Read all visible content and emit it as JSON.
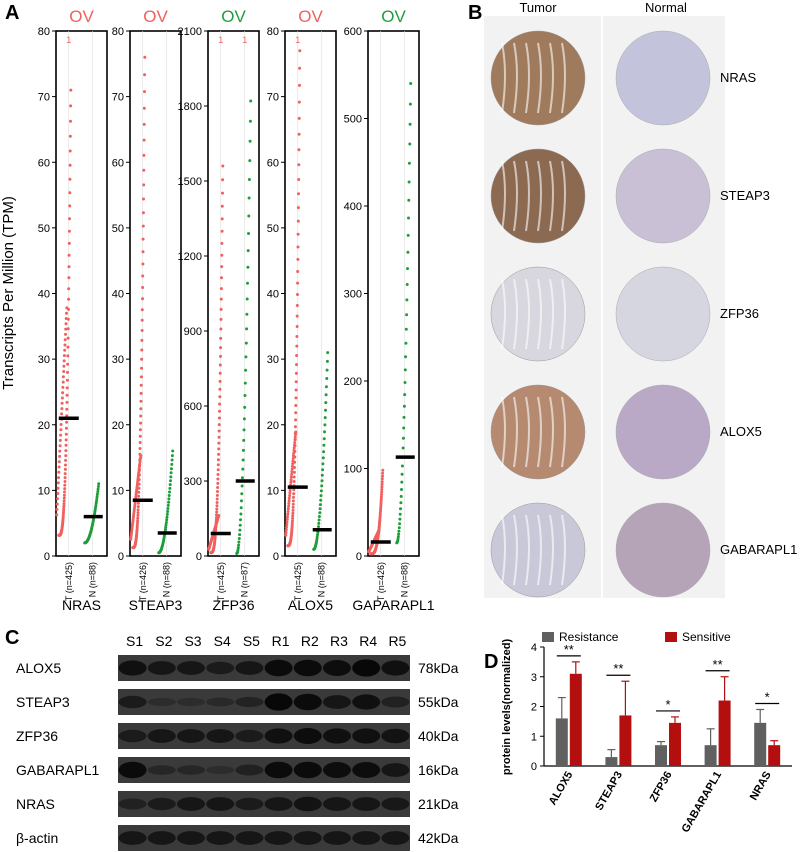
{
  "panels": {
    "a": "A",
    "b": "B",
    "c": "C",
    "d": "D"
  },
  "panelA": {
    "ylabel": "Transcripts Per Million (TPM)",
    "colors": {
      "tumor": "#f0605e",
      "normal": "#1e9e3a",
      "median": "#000000"
    },
    "plots": [
      {
        "gene": "NRAS",
        "title": "OV",
        "titleColor": "#f0605e",
        "ymax": 80,
        "ticks": [
          0,
          10,
          20,
          30,
          40,
          50,
          60,
          70,
          80
        ],
        "marker": "1",
        "markerT": true,
        "markerN": false,
        "xlab": [
          "T (n=425)",
          "N (n=88)"
        ],
        "tMedian": 21,
        "nMedian": 6,
        "tMax": 71,
        "nMin": 2,
        "nMax": 11
      },
      {
        "gene": "STEAP3",
        "title": "OV",
        "titleColor": "#f0605e",
        "ymax": 80,
        "ticks": [
          0,
          10,
          20,
          30,
          40,
          50,
          60,
          70,
          80
        ],
        "marker": "",
        "markerT": false,
        "markerN": false,
        "xlab": [
          "T (n=426)",
          "N (n=88)"
        ],
        "tMedian": 8.5,
        "nMedian": 3.5,
        "tMax": 76,
        "nMin": 0.5,
        "nMax": 16
      },
      {
        "gene": "ZFP36",
        "title": "OV",
        "titleColor": "#1e9e3a",
        "ymax": 2100,
        "ticks": [
          0,
          300,
          600,
          900,
          1200,
          1500,
          1800,
          2100
        ],
        "marker": "1",
        "markerT": true,
        "markerN": true,
        "xlab": [
          "T (n=425)",
          "N (n=87)"
        ],
        "tMedian": 90,
        "nMedian": 300,
        "tMax": 1560,
        "nMin": 10,
        "nMax": 1820
      },
      {
        "gene": "ALOX5",
        "title": "OV",
        "titleColor": "#f0605e",
        "ymax": 80,
        "ticks": [
          0,
          10,
          20,
          30,
          40,
          50,
          60,
          70,
          80
        ],
        "marker": "1",
        "markerT": true,
        "markerN": false,
        "xlab": [
          "T (n=425)",
          "N (n=88)"
        ],
        "tMedian": 10.5,
        "nMedian": 4,
        "tMax": 77,
        "nMin": 1,
        "nMax": 31
      },
      {
        "gene": "GAPARAPL1",
        "title": "OV",
        "titleColor": "#1e9e3a",
        "ymax": 600,
        "ticks": [
          0,
          100,
          200,
          300,
          400,
          500,
          600
        ],
        "marker": "",
        "markerT": false,
        "markerN": false,
        "xlab": [
          "T (n=426)",
          "N (n=88)"
        ],
        "tMedian": 16,
        "nMedian": 113,
        "tMax": 98,
        "nMin": 15,
        "nMax": 540
      }
    ]
  },
  "panelB": {
    "headers": [
      "Tumor",
      "Normal"
    ],
    "genes": [
      "NRAS",
      "STEAP3",
      "ZFP36",
      "ALOX5",
      "GABARAPL1"
    ]
  },
  "panelC": {
    "lanes": [
      "S1",
      "S2",
      "S3",
      "S4",
      "S5",
      "R1",
      "R2",
      "R3",
      "R4",
      "R5"
    ],
    "rows": [
      {
        "name": "ALOX5",
        "kda": "78kDa"
      },
      {
        "name": "STEAP3",
        "kda": "55kDa"
      },
      {
        "name": "ZFP36",
        "kda": "40kDa"
      },
      {
        "name": "GABARAPL1",
        "kda": "16kDa"
      },
      {
        "name": "NRAS",
        "kda": "21kDa"
      },
      {
        "name": "β-actin",
        "kda": "42kDa"
      }
    ]
  },
  "chart_data": {
    "type": "bar",
    "ylabel": "protein levels(normalized)",
    "ylim": [
      0,
      4
    ],
    "yticks": [
      0,
      1,
      2,
      3,
      4
    ],
    "legend_position": "top",
    "categories": [
      "ALOX5",
      "STEAP3",
      "ZFP36",
      "GABARAPL1",
      "NRAS"
    ],
    "series": [
      {
        "name": "Resistance",
        "color": "#606060",
        "values": [
          1.6,
          0.3,
          0.7,
          0.7,
          1.45
        ],
        "errors": [
          0.7,
          0.25,
          0.12,
          0.55,
          0.45
        ]
      },
      {
        "name": "Sensitive",
        "color": "#b40f0f",
        "values": [
          3.1,
          1.7,
          1.45,
          2.2,
          0.7
        ],
        "errors": [
          0.4,
          1.15,
          0.2,
          0.8,
          0.15
        ]
      }
    ],
    "significance": [
      "**",
      "**",
      "*",
      "**",
      "*"
    ]
  }
}
